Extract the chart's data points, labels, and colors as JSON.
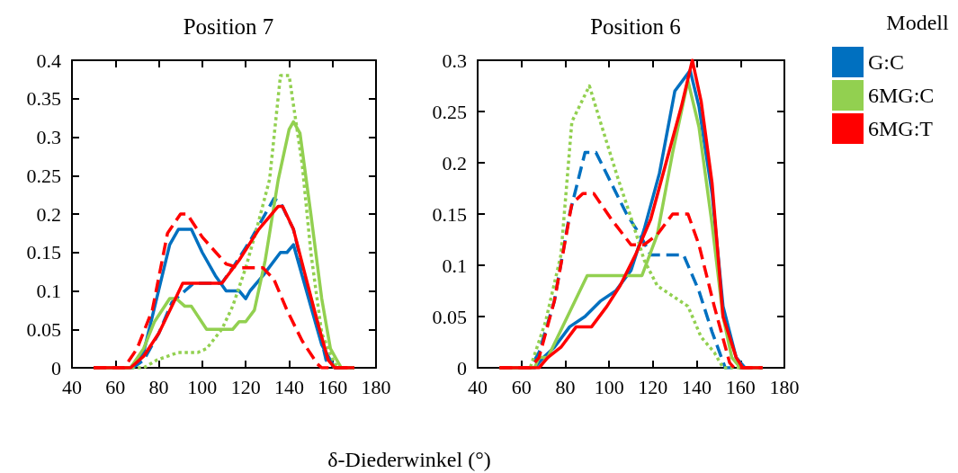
{
  "chart_data": [
    {
      "type": "line",
      "title": "Position 7",
      "xlabel": "δ-Diederwinkel (°)",
      "xlim": [
        40,
        180
      ],
      "xticks": [
        40,
        60,
        80,
        100,
        120,
        140,
        160,
        180
      ],
      "ylim": [
        0,
        0.4
      ],
      "yticks": [
        0,
        0.05,
        0.1,
        0.15,
        0.2,
        0.25,
        0.3,
        0.35,
        0.4
      ],
      "grid": false,
      "legend": false,
      "marker": "none",
      "series": [
        {
          "color": "#0070c0",
          "line_style": "solid",
          "x": [
            50,
            67,
            73,
            85,
            89,
            95,
            100,
            106,
            111,
            117,
            120,
            122,
            128,
            136,
            139,
            142,
            146,
            151,
            155,
            161,
            170
          ],
          "values": [
            0,
            0,
            0.02,
            0.16,
            0.18,
            0.18,
            0.15,
            0.12,
            0.1,
            0.1,
            0.09,
            0.1,
            0.12,
            0.15,
            0.15,
            0.16,
            0.12,
            0.07,
            0.03,
            0,
            0
          ]
        },
        {
          "color": "#0070c0",
          "line_style": "dashed",
          "x": [
            50,
            68,
            73,
            80,
            86,
            92,
            96,
            109,
            114,
            122,
            133,
            136,
            142,
            147,
            153,
            157,
            161,
            170
          ],
          "values": [
            0,
            0,
            0.01,
            0.045,
            0.085,
            0.1,
            0.11,
            0.11,
            0.13,
            0.165,
            0.22,
            0.215,
            0.18,
            0.12,
            0.06,
            0.01,
            0,
            0
          ]
        },
        {
          "color": "#92d050",
          "line_style": "solid",
          "x": [
            50,
            67,
            73,
            78,
            85,
            88,
            92,
            95,
            102,
            114,
            117,
            120,
            124,
            129,
            135,
            140,
            142,
            145,
            150,
            155,
            159,
            164,
            170
          ],
          "values": [
            0,
            0,
            0.025,
            0.06,
            0.09,
            0.09,
            0.08,
            0.08,
            0.05,
            0.05,
            0.06,
            0.06,
            0.075,
            0.14,
            0.245,
            0.31,
            0.32,
            0.305,
            0.2,
            0.09,
            0.025,
            0,
            0
          ]
        },
        {
          "color": "#92d050",
          "line_style": "dotted",
          "x": [
            50,
            73,
            79,
            89,
            98,
            102,
            109,
            114,
            120,
            125,
            131,
            136,
            140,
            146,
            150,
            155,
            161,
            164,
            170
          ],
          "values": [
            0,
            0,
            0.01,
            0.02,
            0.02,
            0.025,
            0.05,
            0.08,
            0.13,
            0.18,
            0.245,
            0.38,
            0.38,
            0.265,
            0.15,
            0.045,
            0.005,
            0,
            0
          ]
        },
        {
          "color": "#ff0000",
          "line_style": "solid",
          "x": [
            50,
            67,
            73,
            80,
            86,
            91,
            109,
            117,
            126,
            135,
            137,
            142,
            147,
            153,
            158,
            161,
            170
          ],
          "values": [
            0,
            0,
            0.015,
            0.045,
            0.08,
            0.11,
            0.11,
            0.14,
            0.18,
            0.21,
            0.21,
            0.18,
            0.125,
            0.06,
            0.01,
            0,
            0
          ]
        },
        {
          "color": "#ff0000",
          "line_style": "dashed",
          "x": [
            50,
            64,
            70,
            77,
            84,
            90,
            93,
            100,
            111,
            117,
            128,
            133,
            139,
            146,
            153,
            155,
            170
          ],
          "values": [
            0,
            0,
            0.025,
            0.075,
            0.175,
            0.2,
            0.2,
            0.17,
            0.135,
            0.13,
            0.13,
            0.115,
            0.075,
            0.035,
            0.005,
            0,
            0
          ]
        }
      ]
    },
    {
      "type": "line",
      "title": "Position 6",
      "xlim": [
        40,
        180
      ],
      "xticks": [
        40,
        60,
        80,
        100,
        120,
        140,
        160,
        180
      ],
      "ylim": [
        0,
        0.3
      ],
      "yticks": [
        0,
        0.05,
        0.1,
        0.15,
        0.2,
        0.25,
        0.3
      ],
      "grid": false,
      "legend": "top right",
      "legend_title": "Modell",
      "marker": "none",
      "series": [
        {
          "name": "G:C",
          "color": "#0070c0",
          "line_style": "solid",
          "x": [
            50,
            66,
            70,
            75,
            82,
            89,
            96,
            103,
            110,
            116,
            123,
            130,
            137,
            141,
            147,
            152,
            158,
            162,
            170
          ],
          "values": [
            0,
            0,
            0.01,
            0.02,
            0.04,
            0.05,
            0.065,
            0.075,
            0.095,
            0.135,
            0.19,
            0.27,
            0.29,
            0.255,
            0.17,
            0.06,
            0.01,
            0,
            0
          ]
        },
        {
          "color": "#0070c0",
          "line_style": "dashed",
          "x": [
            50,
            64,
            68,
            75,
            82,
            89,
            94,
            101,
            108,
            114,
            119,
            134,
            141,
            147,
            153,
            170
          ],
          "values": [
            0,
            0,
            0.015,
            0.065,
            0.15,
            0.21,
            0.21,
            0.18,
            0.15,
            0.13,
            0.11,
            0.11,
            0.075,
            0.035,
            0,
            0
          ]
        },
        {
          "name": "6MG:C",
          "color": "#92d050",
          "line_style": "solid",
          "x": [
            50,
            66,
            68,
            72,
            90,
            115,
            122,
            129,
            136,
            141,
            147,
            152,
            156,
            160,
            170
          ],
          "values": [
            0,
            0,
            0.01,
            0.01,
            0.09,
            0.09,
            0.13,
            0.21,
            0.28,
            0.235,
            0.14,
            0.05,
            0.01,
            0,
            0
          ]
        },
        {
          "color": "#92d050",
          "line_style": "dotted",
          "x": [
            50,
            64,
            71,
            78,
            83,
            91,
            96,
            104,
            111,
            116,
            122,
            129,
            136,
            142,
            148,
            152,
            170
          ],
          "values": [
            0,
            0,
            0.045,
            0.11,
            0.24,
            0.275,
            0.24,
            0.185,
            0.14,
            0.105,
            0.08,
            0.07,
            0.06,
            0.03,
            0.015,
            0,
            0
          ]
        },
        {
          "name": "6MG:T",
          "color": "#ff0000",
          "line_style": "solid",
          "x": [
            50,
            68,
            72,
            78,
            85,
            92,
            99,
            105,
            112,
            119,
            126,
            133,
            138,
            142,
            147,
            152,
            158,
            161,
            170
          ],
          "values": [
            0,
            0,
            0.01,
            0.02,
            0.04,
            0.04,
            0.06,
            0.08,
            0.11,
            0.145,
            0.2,
            0.255,
            0.3,
            0.26,
            0.18,
            0.05,
            0.01,
            0,
            0
          ]
        },
        {
          "color": "#ff0000",
          "line_style": "dashed",
          "x": [
            50,
            64,
            68,
            75,
            83,
            88,
            93,
            101,
            110,
            116,
            122,
            129,
            136,
            141,
            148,
            155,
            157,
            170
          ],
          "values": [
            0,
            0,
            0.01,
            0.065,
            0.16,
            0.17,
            0.17,
            0.145,
            0.12,
            0.12,
            0.13,
            0.15,
            0.15,
            0.12,
            0.06,
            0.005,
            0,
            0
          ]
        }
      ]
    }
  ]
}
